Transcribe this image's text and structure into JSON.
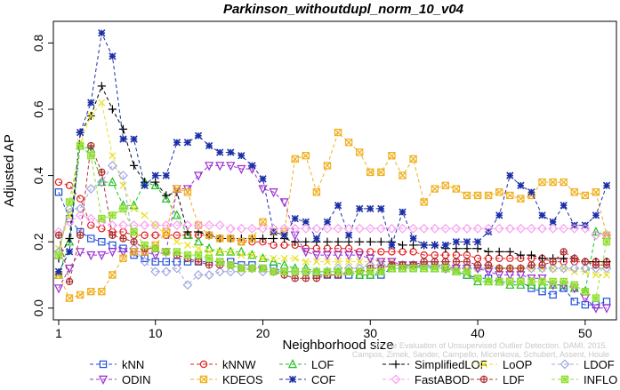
{
  "chart_data": {
    "type": "line",
    "title": "Parkinson_withoutdupl_norm_10_v04",
    "xlabel": "Neighborhood size",
    "ylabel": "Adjusted AP",
    "xlim": [
      0.5,
      52.5
    ],
    "ylim": [
      -0.03,
      0.86
    ],
    "xticks": [
      1,
      10,
      20,
      30,
      40,
      50
    ],
    "yticks": [
      0.0,
      0.2,
      0.4,
      0.6,
      0.8
    ],
    "grid": false,
    "legend_position": "bottom",
    "watermark": "Campos, Zimek, Sander, Campello, Micenkova, Schubert, Assent, Houle",
    "watermark2": "On the Evaluation of Unsupervised Outlier Detection. DAMI, 2015.",
    "x": [
      1,
      2,
      3,
      4,
      5,
      6,
      7,
      8,
      9,
      10,
      11,
      12,
      13,
      14,
      15,
      16,
      17,
      18,
      19,
      20,
      21,
      22,
      23,
      24,
      25,
      26,
      27,
      28,
      29,
      30,
      31,
      32,
      33,
      34,
      35,
      36,
      37,
      38,
      39,
      40,
      41,
      42,
      43,
      44,
      45,
      46,
      47,
      48,
      49,
      50,
      51,
      52
    ],
    "series": [
      {
        "name": "kNN",
        "color": "#1f4fd6",
        "marker": "square",
        "values": [
          0.35,
          0.27,
          0.23,
          0.21,
          0.2,
          0.19,
          0.18,
          0.16,
          0.15,
          0.14,
          0.14,
          0.14,
          0.14,
          0.14,
          0.14,
          0.14,
          0.14,
          0.13,
          0.13,
          0.12,
          0.12,
          0.11,
          0.11,
          0.11,
          0.1,
          0.1,
          0.1,
          0.1,
          0.1,
          0.1,
          0.1,
          0.12,
          0.12,
          0.12,
          0.13,
          0.12,
          0.12,
          0.11,
          0.1,
          0.09,
          0.09,
          0.08,
          0.08,
          0.08,
          0.06,
          0.05,
          0.04,
          0.06,
          0.02,
          0.01,
          0.01,
          0.02
        ]
      },
      {
        "name": "kNNW",
        "color": "#e02020",
        "marker": "circle",
        "values": [
          0.38,
          0.37,
          0.33,
          0.25,
          0.24,
          0.23,
          0.23,
          0.22,
          0.22,
          0.22,
          0.22,
          0.22,
          0.22,
          0.22,
          0.22,
          0.21,
          0.21,
          0.2,
          0.2,
          0.2,
          0.19,
          0.19,
          0.19,
          0.18,
          0.18,
          0.18,
          0.18,
          0.18,
          0.17,
          0.17,
          0.17,
          0.17,
          0.17,
          0.17,
          0.16,
          0.16,
          0.16,
          0.16,
          0.16,
          0.15,
          0.15,
          0.15,
          0.15,
          0.15,
          0.15,
          0.15,
          0.14,
          0.14,
          0.14,
          0.14,
          0.14,
          0.14
        ]
      },
      {
        "name": "LOF",
        "color": "#20c020",
        "marker": "triangle",
        "values": [
          0.1,
          0.2,
          0.49,
          0.48,
          0.38,
          0.38,
          0.31,
          0.31,
          0.38,
          0.37,
          0.33,
          0.28,
          0.22,
          0.2,
          0.18,
          0.17,
          0.17,
          0.17,
          0.16,
          0.15,
          0.14,
          0.13,
          0.12,
          0.12,
          0.11,
          0.11,
          0.11,
          0.11,
          0.1,
          0.1,
          0.11,
          0.12,
          0.12,
          0.13,
          0.12,
          0.12,
          0.12,
          0.11,
          0.1,
          0.08,
          0.08,
          0.08,
          0.07,
          0.07,
          0.07,
          0.07,
          0.07,
          0.07,
          0.06,
          0.05,
          0.23,
          0.22
        ]
      },
      {
        "name": "SimplifiedLOF",
        "color": "#000000",
        "marker": "plus",
        "values": [
          0.15,
          0.21,
          0.53,
          0.58,
          0.67,
          0.6,
          0.54,
          0.43,
          0.38,
          0.38,
          0.34,
          0.35,
          0.23,
          0.23,
          0.22,
          0.21,
          0.21,
          0.21,
          0.21,
          0.21,
          0.21,
          0.21,
          0.2,
          0.2,
          0.2,
          0.2,
          0.2,
          0.2,
          0.2,
          0.2,
          0.2,
          0.2,
          0.19,
          0.19,
          0.19,
          0.19,
          0.18,
          0.18,
          0.18,
          0.18,
          0.17,
          0.17,
          0.17,
          0.16,
          0.16,
          0.15,
          0.15,
          0.15,
          0.15,
          0.14,
          0.14,
          0.14
        ]
      },
      {
        "name": "LoOP",
        "color": "#e8e020",
        "marker": "x",
        "values": [
          0.18,
          0.28,
          0.5,
          0.58,
          0.62,
          0.46,
          0.37,
          0.3,
          0.28,
          0.25,
          0.22,
          0.2,
          0.19,
          0.18,
          0.17,
          0.17,
          0.17,
          0.16,
          0.16,
          0.15,
          0.15,
          0.15,
          0.15,
          0.14,
          0.14,
          0.14,
          0.14,
          0.14,
          0.14,
          0.14,
          0.14,
          0.14,
          0.13,
          0.13,
          0.13,
          0.13,
          0.13,
          0.12,
          0.12,
          0.12,
          0.12,
          0.12,
          0.12,
          0.12,
          0.12,
          0.12,
          0.12,
          0.12,
          0.11,
          0.11,
          0.1,
          0.1
        ]
      },
      {
        "name": "LDOF",
        "color": "#a0a8e0",
        "marker": "diamond",
        "values": [
          0.17,
          0.3,
          0.3,
          0.36,
          0.38,
          0.43,
          0.4,
          0.18,
          0.14,
          0.11,
          0.11,
          0.12,
          0.07,
          0.1,
          0.1,
          0.11,
          0.11,
          0.11,
          0.12,
          0.11,
          0.11,
          0.11,
          0.11,
          0.11,
          0.11,
          0.11,
          0.12,
          0.12,
          0.12,
          0.13,
          0.13,
          0.13,
          0.13,
          0.13,
          0.13,
          0.13,
          0.13,
          0.12,
          0.12,
          0.12,
          0.12,
          0.12,
          0.12,
          0.12,
          0.12,
          0.12,
          0.12,
          0.12,
          0.12,
          0.12,
          0.12,
          0.12
        ]
      },
      {
        "name": "ODIN",
        "color": "#9b30d0",
        "marker": "triangle-down",
        "values": [
          0.06,
          0.12,
          0.17,
          0.16,
          0.16,
          0.17,
          0.17,
          0.17,
          0.17,
          0.16,
          0.17,
          0.36,
          0.36,
          0.4,
          0.43,
          0.43,
          0.43,
          0.42,
          0.42,
          0.36,
          0.35,
          0.32,
          0.22,
          0.17,
          0.16,
          0.16,
          0.16,
          0.16,
          0.16,
          0.15,
          0.14,
          0.14,
          0.13,
          0.13,
          0.13,
          0.13,
          0.12,
          0.12,
          0.12,
          0.12,
          0.11,
          0.1,
          0.1,
          0.1,
          0.09,
          0.09,
          0.07,
          0.07,
          0.06,
          0.03,
          0.0,
          0.0
        ]
      },
      {
        "name": "KDEOS",
        "color": "#f0b020",
        "marker": "square-x",
        "values": [
          0.1,
          0.03,
          0.04,
          0.05,
          0.05,
          0.1,
          0.15,
          0.17,
          0.17,
          0.19,
          0.23,
          0.36,
          0.35,
          0.25,
          0.22,
          0.21,
          0.21,
          0.2,
          0.21,
          0.26,
          0.23,
          0.23,
          0.45,
          0.46,
          0.35,
          0.43,
          0.53,
          0.5,
          0.47,
          0.41,
          0.41,
          0.46,
          0.4,
          0.45,
          0.32,
          0.36,
          0.37,
          0.36,
          0.34,
          0.34,
          0.34,
          0.35,
          0.34,
          0.33,
          0.34,
          0.38,
          0.38,
          0.38,
          0.35,
          0.34,
          0.35,
          0.22
        ]
      },
      {
        "name": "COF",
        "color": "#1c2fa8",
        "marker": "star",
        "values": [
          0.11,
          0.17,
          0.53,
          0.62,
          0.83,
          0.76,
          0.51,
          0.51,
          0.37,
          0.4,
          0.4,
          0.5,
          0.5,
          0.52,
          0.49,
          0.47,
          0.47,
          0.46,
          0.43,
          0.39,
          0.23,
          0.22,
          0.27,
          0.26,
          0.21,
          0.26,
          0.31,
          0.22,
          0.3,
          0.3,
          0.3,
          0.19,
          0.29,
          0.21,
          0.19,
          0.19,
          0.19,
          0.2,
          0.2,
          0.2,
          0.23,
          0.28,
          0.4,
          0.37,
          0.35,
          0.28,
          0.26,
          0.31,
          0.25,
          0.25,
          0.28,
          0.37
        ]
      },
      {
        "name": "FastABOD",
        "color": "#f8a0f0",
        "marker": "diamond",
        "values": [
          0.23,
          0.26,
          0.28,
          0.27,
          0.26,
          0.25,
          0.25,
          0.25,
          0.25,
          0.25,
          0.25,
          0.25,
          0.25,
          0.25,
          0.25,
          0.25,
          0.24,
          0.24,
          0.24,
          0.24,
          0.24,
          0.24,
          0.24,
          0.24,
          0.24,
          0.24,
          0.24,
          0.24,
          0.24,
          0.24,
          0.24,
          0.24,
          0.24,
          0.24,
          0.24,
          0.24,
          0.24,
          0.24,
          0.24,
          0.24,
          0.24,
          0.24,
          0.24,
          0.24,
          0.24,
          0.24,
          0.24,
          0.24,
          0.24,
          0.24,
          0.22,
          0.22
        ]
      },
      {
        "name": "LDF",
        "color": "#b03030",
        "marker": "circle-plus",
        "values": [
          0.22,
          0.08,
          0.22,
          0.49,
          0.41,
          0.22,
          0.21,
          0.2,
          0.18,
          0.18,
          0.17,
          0.16,
          0.15,
          0.14,
          0.13,
          0.13,
          0.13,
          0.12,
          0.12,
          0.12,
          0.11,
          0.1,
          0.09,
          0.09,
          0.09,
          0.1,
          0.1,
          0.11,
          0.11,
          0.12,
          0.12,
          0.13,
          0.13,
          0.13,
          0.14,
          0.14,
          0.14,
          0.14,
          0.14,
          0.13,
          0.13,
          0.12,
          0.12,
          0.12,
          0.13,
          0.13,
          0.14,
          0.17,
          0.15,
          0.14,
          0.13,
          0.13
        ]
      },
      {
        "name": "INFLO",
        "color": "#90e030",
        "marker": "star-box",
        "values": [
          0.16,
          0.32,
          0.49,
          0.46,
          0.27,
          0.28,
          0.3,
          0.23,
          0.19,
          0.18,
          0.17,
          0.17,
          0.16,
          0.16,
          0.15,
          0.14,
          0.13,
          0.12,
          0.12,
          0.12,
          0.11,
          0.11,
          0.11,
          0.11,
          0.11,
          0.11,
          0.11,
          0.11,
          0.11,
          0.11,
          0.11,
          0.12,
          0.12,
          0.12,
          0.12,
          0.12,
          0.12,
          0.11,
          0.11,
          0.09,
          0.08,
          0.08,
          0.08,
          0.08,
          0.08,
          0.08,
          0.08,
          0.08,
          0.07,
          0.05,
          0.03,
          0.2
        ]
      }
    ]
  }
}
